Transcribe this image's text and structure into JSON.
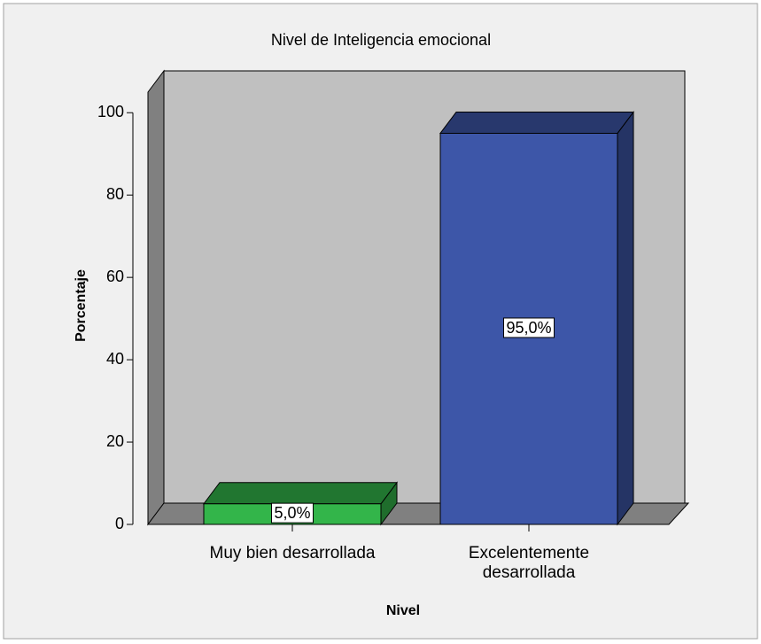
{
  "chart_data": {
    "type": "bar3d",
    "title": "Nivel de Inteligencia emocional",
    "x_label": "Nivel",
    "y_label": "Porcentaje",
    "categories": [
      "Muy bien desarrollada",
      "Excelentemente desarrollada"
    ],
    "series": [
      {
        "name": "Porcentaje",
        "values": [
          5.0,
          95.0
        ],
        "value_labels": [
          "5,0%",
          "95,0%"
        ],
        "colors": [
          "#33b54a",
          "#3d56a8"
        ]
      }
    ],
    "ylim": [
      0,
      105
    ],
    "yticks": [
      0,
      20,
      40,
      60,
      80,
      100
    ],
    "grid": false
  }
}
